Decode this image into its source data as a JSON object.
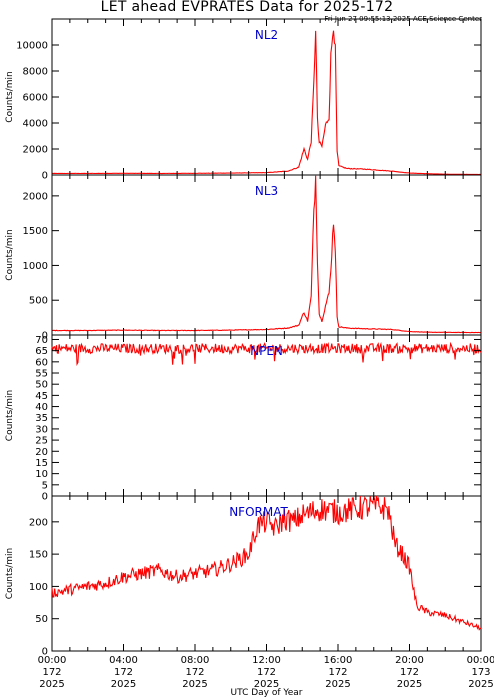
{
  "title": "LET ahead EVPRATES Data for 2025-172",
  "timestamp": "Fri Jun 27 09:55:13 2025 ACE Science Center",
  "colors": {
    "series": "#ff0000",
    "panel_label": "#0000cc",
    "axes": "#000000"
  },
  "chart_data": [
    {
      "type": "line",
      "label": "NL2",
      "ylabel": "Counts/min",
      "ylim": [
        0,
        12000
      ],
      "yticks": [
        0,
        2000,
        4000,
        6000,
        8000,
        10000
      ],
      "xlim": [
        0,
        24
      ],
      "x": [
        0,
        2,
        4,
        6,
        8,
        10,
        12,
        13.2,
        13.8,
        14.1,
        14.3,
        14.5,
        14.65,
        14.75,
        14.85,
        14.95,
        15.1,
        15.3,
        15.5,
        15.6,
        15.75,
        15.85,
        15.95,
        16.05,
        16.5,
        17.5,
        19,
        20,
        21,
        22,
        24
      ],
      "values": [
        120,
        120,
        130,
        120,
        130,
        150,
        180,
        300,
        600,
        2000,
        1200,
        2600,
        7000,
        11500,
        4200,
        2500,
        2200,
        3800,
        4500,
        9000,
        11800,
        9500,
        1800,
        700,
        500,
        450,
        300,
        150,
        100,
        60,
        40
      ]
    },
    {
      "type": "line",
      "label": "NL3",
      "ylabel": "Counts/min",
      "ylim": [
        0,
        2300
      ],
      "yticks": [
        0,
        500,
        1000,
        1500,
        2000
      ],
      "xlim": [
        0,
        24
      ],
      "x": [
        0,
        2,
        4,
        6,
        8,
        10,
        12,
        13.2,
        13.8,
        14.1,
        14.3,
        14.5,
        14.65,
        14.75,
        14.85,
        14.95,
        15.1,
        15.3,
        15.5,
        15.6,
        15.75,
        15.85,
        15.95,
        16.05,
        16.5,
        17.5,
        19,
        20,
        21,
        22,
        24
      ],
      "values": [
        65,
        65,
        70,
        65,
        65,
        70,
        80,
        100,
        140,
        330,
        200,
        550,
        1800,
        2280,
        1100,
        300,
        200,
        420,
        600,
        950,
        1650,
        1250,
        250,
        120,
        100,
        90,
        80,
        50,
        40,
        38,
        35
      ]
    },
    {
      "type": "line",
      "label": "NPEN",
      "ylabel": "Counts/min",
      "ylim": [
        0,
        72
      ],
      "yticks": [
        0,
        5,
        10,
        15,
        20,
        25,
        30,
        35,
        40,
        45,
        50,
        55,
        60,
        65,
        70
      ],
      "xlim": [
        0,
        24
      ],
      "x": [
        0,
        2,
        4,
        6,
        8,
        10,
        12,
        14,
        16,
        18,
        20,
        22,
        24
      ],
      "values": [
        66,
        66,
        66,
        66,
        66,
        66,
        66,
        66,
        66,
        66,
        66,
        66,
        66
      ]
    },
    {
      "type": "line",
      "label": "NFORMAT",
      "ylabel": "Counts/min",
      "xlabel": "UTC Day of Year",
      "ylim": [
        0,
        240
      ],
      "yticks": [
        0,
        50,
        100,
        150,
        200
      ],
      "xlim": [
        0,
        24
      ],
      "xticks": [
        {
          "value": 0,
          "time": "00:00",
          "doy": "172",
          "year": "2025"
        },
        {
          "value": 4,
          "time": "04:00",
          "doy": "172",
          "year": "2025"
        },
        {
          "value": 8,
          "time": "08:00",
          "doy": "172",
          "year": "2025"
        },
        {
          "value": 12,
          "time": "12:00",
          "doy": "172",
          "year": "2025"
        },
        {
          "value": 16,
          "time": "16:00",
          "doy": "172",
          "year": "2025"
        },
        {
          "value": 20,
          "time": "20:00",
          "doy": "172",
          "year": "2025"
        },
        {
          "value": 24,
          "time": "00:00",
          "doy": "173",
          "year": "2025"
        }
      ],
      "x": [
        0,
        1,
        2,
        3,
        4,
        5,
        6,
        7,
        8,
        9,
        10,
        11,
        11.5,
        12,
        12.5,
        13,
        13.5,
        14,
        15,
        16,
        17,
        18,
        18.8,
        19.2,
        19.6,
        20,
        20.4,
        21,
        22,
        23,
        24
      ],
      "values": [
        90,
        95,
        100,
        105,
        115,
        120,
        125,
        115,
        120,
        125,
        135,
        150,
        195,
        200,
        190,
        205,
        200,
        210,
        220,
        215,
        220,
        225,
        220,
        165,
        150,
        130,
        70,
        60,
        55,
        45,
        35
      ]
    }
  ]
}
